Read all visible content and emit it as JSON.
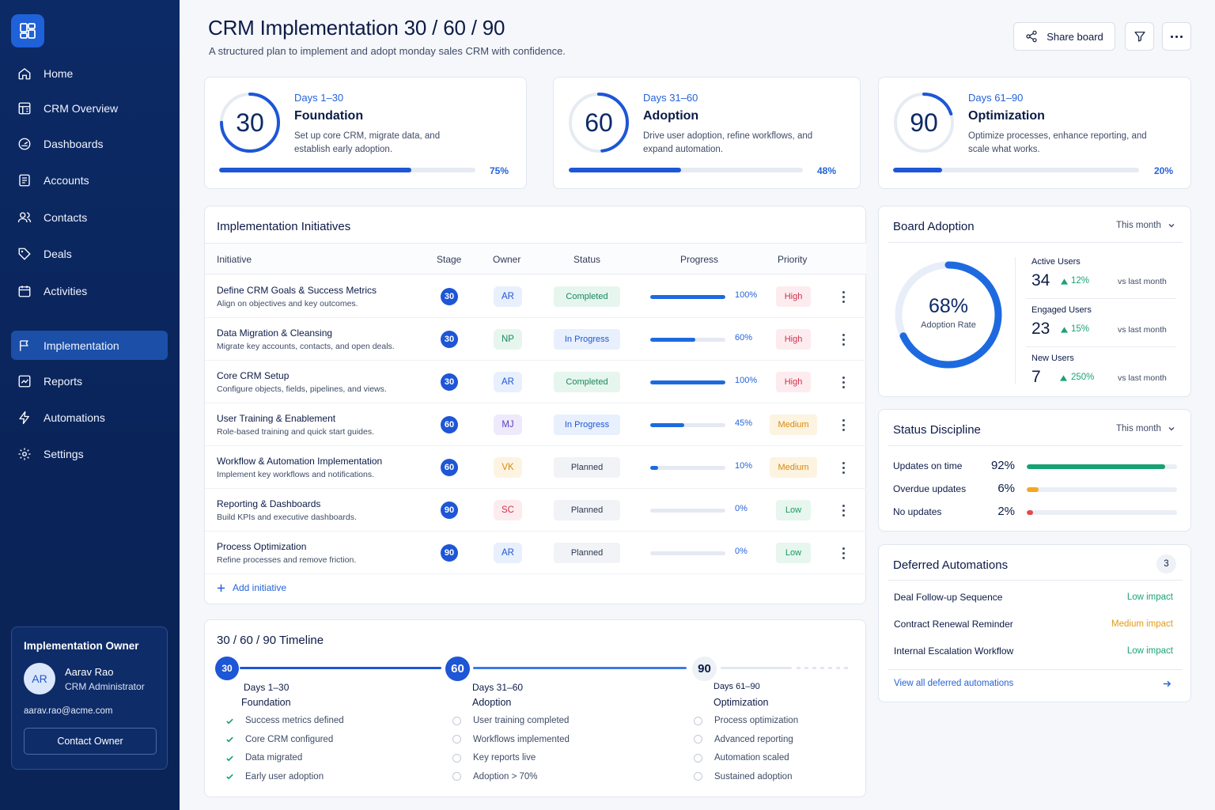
{
  "sidebar": {
    "nav": [
      {
        "label": "Home",
        "icon": "home-icon"
      },
      {
        "label": "CRM Overview",
        "icon": "grid-icon"
      },
      {
        "label": "Dashboards",
        "icon": "gauge-icon"
      },
      {
        "label": "Accounts",
        "icon": "document-icon"
      },
      {
        "label": "Contacts",
        "icon": "users-icon"
      },
      {
        "label": "Deals",
        "icon": "tag-icon"
      },
      {
        "label": "Activities",
        "icon": "calendar-icon"
      }
    ],
    "nav2": [
      {
        "label": "Implementation",
        "icon": "flag-icon",
        "active": true
      },
      {
        "label": "Reports",
        "icon": "chart-icon"
      },
      {
        "label": "Automations",
        "icon": "lightning-icon"
      },
      {
        "label": "Settings",
        "icon": "gear-icon"
      }
    ],
    "owner": {
      "title": "Implementation Owner",
      "initials": "AR",
      "name": "Aarav Rao",
      "role": "CRM Administrator",
      "email": "aarav.rao@acme.com",
      "button": "Contact Owner"
    }
  },
  "header": {
    "title": "CRM Implementation 30 / 60 / 90",
    "subtitle": "A structured plan to implement and adopt monday sales CRM with confidence.",
    "share_label": "Share board"
  },
  "phases": [
    {
      "num": "30",
      "days": "Days 1–30",
      "name": "Foundation",
      "desc": "Set up core CRM, migrate data, and establish early adoption.",
      "progress": 75,
      "progress_label": "75%"
    },
    {
      "num": "60",
      "days": "Days 31–60",
      "name": "Adoption",
      "desc": "Drive user adoption, refine workflows, and expand automation.",
      "progress": 48,
      "progress_label": "48%"
    },
    {
      "num": "90",
      "days": "Days 61–90",
      "name": "Optimization",
      "desc": "Optimize processes, enhance reporting, and scale what works.",
      "progress": 20,
      "progress_label": "20%"
    }
  ],
  "initiatives": {
    "title": "Implementation Initiatives",
    "columns": [
      "Initiative",
      "Stage",
      "Owner",
      "Status",
      "Progress",
      "Priority"
    ],
    "rows": [
      {
        "name": "Define CRM Goals & Success Metrics",
        "desc": "Align on objectives and key outcomes.",
        "stage": "30",
        "owner": "AR",
        "status": "Completed",
        "progress": 100,
        "progress_label": "100%",
        "priority": "High"
      },
      {
        "name": "Data Migration & Cleansing",
        "desc": "Migrate key accounts, contacts, and open deals.",
        "stage": "30",
        "owner": "NP",
        "status": "In Progress",
        "progress": 60,
        "progress_label": "60%",
        "priority": "High"
      },
      {
        "name": "Core CRM Setup",
        "desc": "Configure objects, fields, pipelines, and views.",
        "stage": "30",
        "owner": "AR",
        "status": "Completed",
        "progress": 100,
        "progress_label": "100%",
        "priority": "High"
      },
      {
        "name": "User Training & Enablement",
        "desc": "Role-based training and quick start guides.",
        "stage": "60",
        "owner": "MJ",
        "status": "In Progress",
        "progress": 45,
        "progress_label": "45%",
        "priority": "Medium"
      },
      {
        "name": "Workflow & Automation Implementation",
        "desc": "Implement key workflows and notifications.",
        "stage": "60",
        "owner": "VK",
        "status": "Planned",
        "progress": 10,
        "progress_label": "10%",
        "priority": "Medium"
      },
      {
        "name": "Reporting & Dashboards",
        "desc": "Build KPIs and executive dashboards.",
        "stage": "90",
        "owner": "SC",
        "status": "Planned",
        "progress": 0,
        "progress_label": "0%",
        "priority": "Low"
      },
      {
        "name": "Process Optimization",
        "desc": "Refine processes and remove friction.",
        "stage": "90",
        "owner": "AR",
        "status": "Planned",
        "progress": 0,
        "progress_label": "0%",
        "priority": "Low"
      }
    ],
    "add_label": "Add initiative"
  },
  "timeline": {
    "title": "30 / 60 / 90 Timeline",
    "phases": [
      {
        "num": "30",
        "days": "Days 1–30",
        "name": "Foundation",
        "items": [
          {
            "label": "Success metrics defined",
            "done": true
          },
          {
            "label": "Core CRM configured",
            "done": true
          },
          {
            "label": "Data migrated",
            "done": true
          },
          {
            "label": "Early user adoption",
            "done": true
          }
        ]
      },
      {
        "num": "60",
        "days": "Days 31–60",
        "name": "Adoption",
        "items": [
          {
            "label": "User training completed",
            "done": false
          },
          {
            "label": "Workflows implemented",
            "done": false
          },
          {
            "label": "Key reports live",
            "done": false
          },
          {
            "label": "Adoption > 70%",
            "done": false
          }
        ]
      },
      {
        "num": "90",
        "days": "Days 61–90",
        "name": "Optimization",
        "items": [
          {
            "label": "Process optimization",
            "done": false
          },
          {
            "label": "Advanced reporting",
            "done": false
          },
          {
            "label": "Automation scaled",
            "done": false
          },
          {
            "label": "Sustained adoption",
            "done": false
          }
        ]
      }
    ]
  },
  "adoption": {
    "title": "Board Adoption",
    "period": "This month",
    "rate_label": "68%",
    "rate": 68,
    "rate_caption": "Adoption Rate",
    "metrics": [
      {
        "label": "Active Users",
        "value": "34",
        "delta": "12%",
        "vs": "vs last month"
      },
      {
        "label": "Engaged Users",
        "value": "23",
        "delta": "15%",
        "vs": "vs last month"
      },
      {
        "label": "New Users",
        "value": "7",
        "delta": "250%",
        "vs": "vs last month"
      }
    ]
  },
  "discipline": {
    "title": "Status Discipline",
    "period": "This month",
    "rows": [
      {
        "label": "Updates on time",
        "value_label": "92%",
        "value": 92,
        "color": "#17a172"
      },
      {
        "label": "Overdue updates",
        "value_label": "6%",
        "value": 6,
        "color": "#f5a623"
      },
      {
        "label": "No updates",
        "value_label": "2%",
        "value": 2,
        "color": "#e5484d"
      }
    ]
  },
  "deferred": {
    "title": "Deferred Automations",
    "count": "3",
    "rows": [
      {
        "name": "Deal Follow-up Sequence",
        "impact": "Low impact",
        "color": "#1aa376"
      },
      {
        "name": "Contract Renewal Reminder",
        "impact": "Medium impact",
        "color": "#e29b12"
      },
      {
        "name": "Internal Escalation Workflow",
        "impact": "Low impact",
        "color": "#1aa376"
      }
    ],
    "link": "View all deferred automations"
  },
  "colors": {
    "accent": "#1d56d6",
    "sidebar": "#0c2a66",
    "completed_bg": "#e6f6ee",
    "completed_fg": "#17885f",
    "progress_bg": "#e8f0fd",
    "progress_fg": "#1d56d6"
  }
}
